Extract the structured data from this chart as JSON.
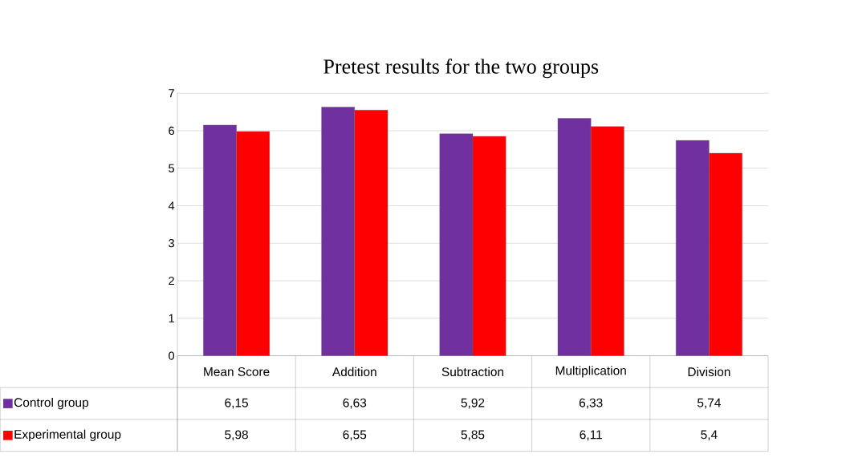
{
  "chart_data": {
    "type": "bar",
    "title": "Pretest results for the two groups",
    "categories": [
      "Mean Score",
      "Addition",
      "Subtraction",
      "Multiplication",
      "Division"
    ],
    "series": [
      {
        "name": "Control group",
        "color": "#7030a0",
        "values": [
          6.15,
          6.63,
          5.92,
          6.33,
          5.74
        ],
        "value_labels": [
          "6,15",
          "6,63",
          "5,92",
          "6,33",
          "5,74"
        ]
      },
      {
        "name": "Experimental group",
        "color": "#ff0000",
        "values": [
          5.98,
          6.55,
          5.85,
          6.11,
          5.4
        ],
        "value_labels": [
          "5,98",
          "6,55",
          "5,85",
          "6,11",
          "5,4"
        ]
      }
    ],
    "ylim": [
      0,
      7
    ],
    "yticks": [
      0,
      1,
      2,
      3,
      4,
      5,
      6,
      7
    ],
    "grid": "y",
    "legend": "bottom"
  }
}
